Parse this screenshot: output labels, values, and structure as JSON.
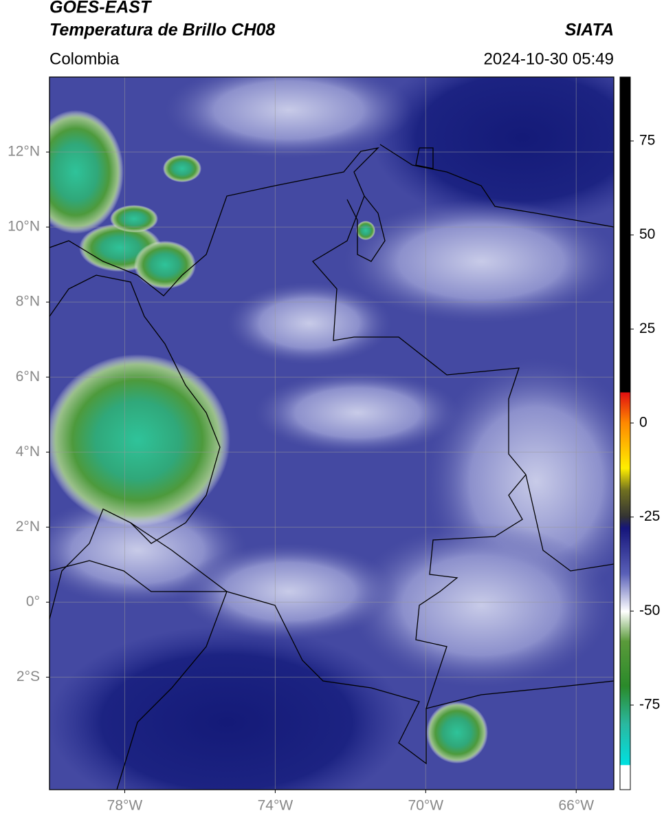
{
  "header": {
    "title": "GOES-EAST",
    "subtitle": "Temperatura de Brillo CH08",
    "source": "SIATA",
    "region": "Colombia",
    "datetime": "2024-10-30 05:49"
  },
  "map": {
    "xlim": [
      -80,
      -65
    ],
    "ylim": [
      -5,
      14
    ],
    "grid": true,
    "xticks": [
      {
        "value": -78,
        "label": "78°W"
      },
      {
        "value": -74,
        "label": "74°W"
      },
      {
        "value": -70,
        "label": "70°W"
      },
      {
        "value": -66,
        "label": "66°W"
      }
    ],
    "yticks": [
      {
        "value": 12,
        "label": "12°N"
      },
      {
        "value": 10,
        "label": "10°N"
      },
      {
        "value": 8,
        "label": "8°N"
      },
      {
        "value": 6,
        "label": "6°N"
      },
      {
        "value": 4,
        "label": "4°N"
      },
      {
        "value": 2,
        "label": "2°N"
      },
      {
        "value": 0,
        "label": "0°"
      },
      {
        "value": -2,
        "label": "2°S"
      }
    ]
  },
  "colorbar": {
    "lim": [
      -97.5,
      92
    ],
    "ticks": [
      75,
      50,
      25,
      0,
      -25,
      -50,
      -75
    ]
  }
}
